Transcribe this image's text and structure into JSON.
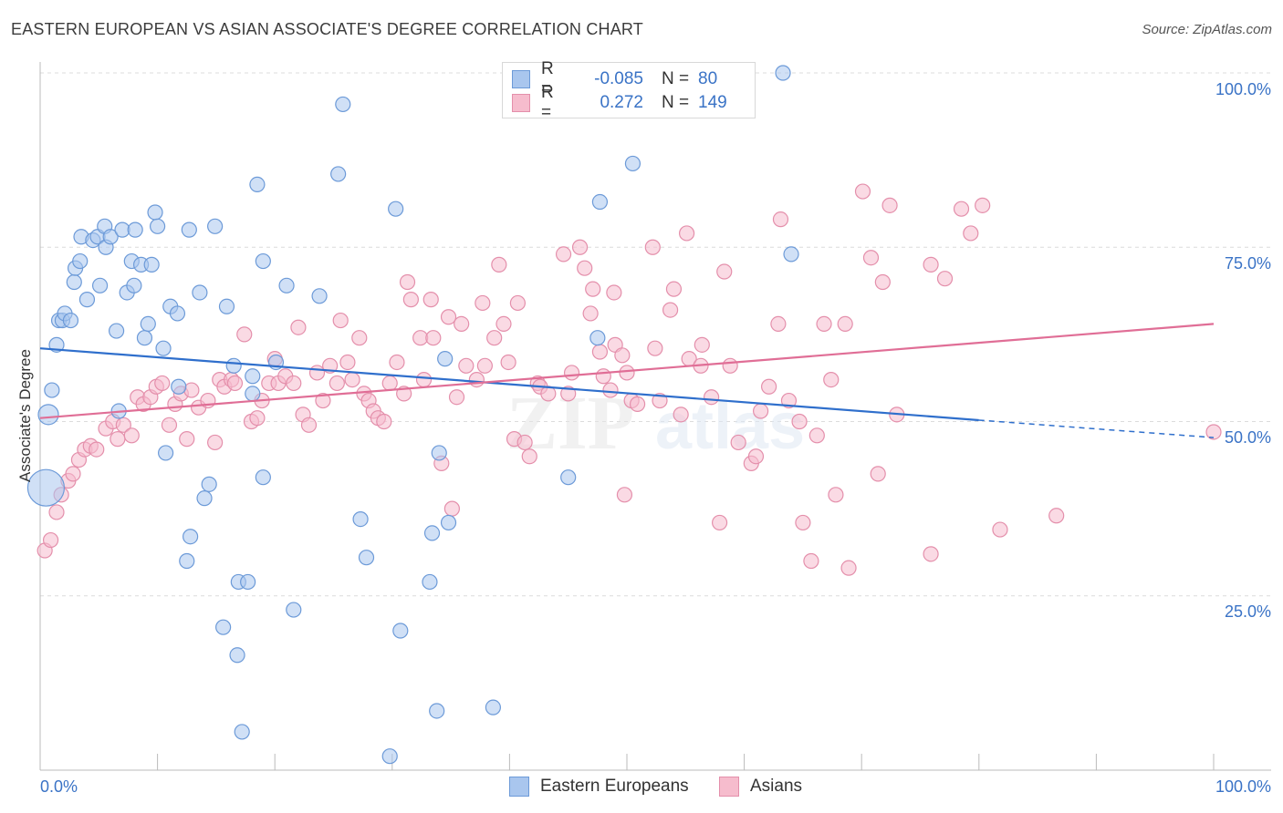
{
  "title": "EASTERN EUROPEAN VS ASIAN ASSOCIATE'S DEGREE CORRELATION CHART",
  "source": "Source: ZipAtlas.com",
  "colors": {
    "blue_fill": "#a9c6ee",
    "blue_stroke": "#6c9ad8",
    "blue_line": "#2f6fcc",
    "pink_fill": "#f6bccd",
    "pink_stroke": "#e48fab",
    "pink_line": "#e06e96",
    "axis_label": "#3a73c6",
    "grid": "#dcdcdc"
  },
  "stats": {
    "rows": [
      {
        "r_label": "R =",
        "r_value": "-0.085",
        "n_label": "N =",
        "n_value": "80"
      },
      {
        "r_label": "R =",
        "r_value": "0.272",
        "n_label": "N =",
        "n_value": "149"
      }
    ]
  },
  "legend": {
    "items": [
      {
        "label": "Eastern Europeans"
      },
      {
        "label": "Asians"
      }
    ]
  },
  "axis": {
    "ylabel": "Associate's Degree",
    "x_min_label": "0.0%",
    "x_max_label": "100.0%",
    "y_ticks": [
      "100.0%",
      "75.0%",
      "50.0%",
      "25.0%"
    ]
  },
  "watermark": {
    "zip": "ZIP",
    "atlas": "atlas"
  },
  "chart_data": {
    "type": "scatter",
    "xlim": [
      0,
      100
    ],
    "ylim": [
      0,
      100
    ],
    "x_tick_labels": [
      "0.0%",
      "100.0%"
    ],
    "y_tick_values": [
      100,
      75,
      50,
      25
    ],
    "grid": true,
    "legend_position": "bottom",
    "series": [
      {
        "name": "Eastern Europeans",
        "r": -0.085,
        "n": 80,
        "trend": {
          "x0": 0,
          "y0": 60.5,
          "x1": 80,
          "y1": 50.2,
          "dashed_to": 100,
          "dashed_y": 47.7
        },
        "points": [
          [
            0.5,
            40.5
          ],
          [
            0.7,
            51
          ],
          [
            1,
            54.5
          ],
          [
            1.4,
            61
          ],
          [
            1.6,
            64.5
          ],
          [
            1.9,
            64.5
          ],
          [
            2.1,
            65.5
          ],
          [
            2.6,
            64.5
          ],
          [
            2.9,
            70
          ],
          [
            3,
            72
          ],
          [
            3.4,
            73
          ],
          [
            3.5,
            76.5
          ],
          [
            4,
            67.5
          ],
          [
            4.5,
            76
          ],
          [
            4.9,
            76.5
          ],
          [
            5.1,
            69.5
          ],
          [
            5.5,
            78
          ],
          [
            5.6,
            75
          ],
          [
            6,
            76.5
          ],
          [
            6.5,
            63
          ],
          [
            6.7,
            51.5
          ],
          [
            7,
            77.5
          ],
          [
            7.4,
            68.5
          ],
          [
            7.8,
            73
          ],
          [
            8,
            69.5
          ],
          [
            8.1,
            77.5
          ],
          [
            8.6,
            72.5
          ],
          [
            8.9,
            62
          ],
          [
            9.2,
            64
          ],
          [
            9.5,
            72.5
          ],
          [
            9.8,
            80
          ],
          [
            10,
            78
          ],
          [
            10.5,
            60.5
          ],
          [
            10.7,
            45.5
          ],
          [
            11.1,
            66.5
          ],
          [
            11.7,
            65.5
          ],
          [
            11.8,
            55
          ],
          [
            12.5,
            30
          ],
          [
            12.7,
            77.5
          ],
          [
            12.8,
            33.5
          ],
          [
            13.6,
            68.5
          ],
          [
            14,
            39
          ],
          [
            14.4,
            41
          ],
          [
            14.9,
            78
          ],
          [
            15.6,
            20.5
          ],
          [
            15.9,
            66.5
          ],
          [
            16.5,
            58
          ],
          [
            16.8,
            16.5
          ],
          [
            16.9,
            27
          ],
          [
            17.2,
            5.5
          ],
          [
            17.7,
            27
          ],
          [
            18.1,
            54
          ],
          [
            18.1,
            56.5
          ],
          [
            18.5,
            84
          ],
          [
            19,
            73
          ],
          [
            19,
            42
          ],
          [
            20.1,
            58.5
          ],
          [
            21,
            69.5
          ],
          [
            21.6,
            23
          ],
          [
            23.8,
            68
          ],
          [
            25.4,
            85.5
          ],
          [
            25.8,
            95.5
          ],
          [
            27.3,
            36
          ],
          [
            27.8,
            30.5
          ],
          [
            29.8,
            2
          ],
          [
            30.3,
            80.5
          ],
          [
            30.7,
            20
          ],
          [
            33.2,
            27
          ],
          [
            33.4,
            34
          ],
          [
            33.8,
            8.5
          ],
          [
            34,
            45.5
          ],
          [
            34.5,
            59
          ],
          [
            34.8,
            35.5
          ],
          [
            38.6,
            9
          ],
          [
            45,
            42
          ],
          [
            47.5,
            62
          ],
          [
            47.7,
            81.5
          ],
          [
            50.5,
            87
          ],
          [
            63.3,
            100
          ],
          [
            64,
            74
          ]
        ],
        "sizes": {
          "0.5,40.5": "xl",
          "0.7,51": "l"
        }
      },
      {
        "name": "Asians",
        "r": 0.272,
        "n": 149,
        "trend": {
          "x0": 0,
          "y0": 50.5,
          "x1": 100,
          "y1": 64
        },
        "points": [
          [
            0.4,
            31.5
          ],
          [
            0.9,
            33
          ],
          [
            1.4,
            37
          ],
          [
            1.8,
            39.5
          ],
          [
            2.4,
            41.5
          ],
          [
            2.8,
            42.5
          ],
          [
            3.3,
            44.5
          ],
          [
            3.8,
            46
          ],
          [
            4.3,
            46.5
          ],
          [
            4.8,
            46
          ],
          [
            5.6,
            49
          ],
          [
            6.2,
            50
          ],
          [
            6.6,
            47.5
          ],
          [
            7.1,
            49.5
          ],
          [
            7.8,
            48
          ],
          [
            8.3,
            53.5
          ],
          [
            8.8,
            52.5
          ],
          [
            9.4,
            53.5
          ],
          [
            9.9,
            55
          ],
          [
            10.4,
            55.5
          ],
          [
            11,
            49.5
          ],
          [
            11.5,
            52.5
          ],
          [
            12,
            54
          ],
          [
            12.5,
            47.5
          ],
          [
            12.9,
            54.5
          ],
          [
            13.5,
            52
          ],
          [
            14.3,
            53
          ],
          [
            14.9,
            47
          ],
          [
            15.3,
            56
          ],
          [
            15.7,
            55
          ],
          [
            16.3,
            56
          ],
          [
            16.6,
            55.5
          ],
          [
            17.4,
            62.5
          ],
          [
            18,
            50
          ],
          [
            18.5,
            50.5
          ],
          [
            18.9,
            53
          ],
          [
            19.5,
            55.5
          ],
          [
            20,
            59
          ],
          [
            20.3,
            55.5
          ],
          [
            20.9,
            56.5
          ],
          [
            21.6,
            55.5
          ],
          [
            22,
            63.5
          ],
          [
            22.4,
            51
          ],
          [
            22.9,
            49.5
          ],
          [
            23.6,
            57
          ],
          [
            24.1,
            53
          ],
          [
            24.7,
            58
          ],
          [
            25.3,
            55.5
          ],
          [
            25.6,
            64.5
          ],
          [
            26.2,
            58.5
          ],
          [
            26.6,
            56
          ],
          [
            27.2,
            62
          ],
          [
            27.6,
            54
          ],
          [
            28,
            53
          ],
          [
            28.4,
            51.5
          ],
          [
            28.8,
            50.5
          ],
          [
            29.3,
            50
          ],
          [
            29.8,
            55.5
          ],
          [
            30.4,
            58.5
          ],
          [
            31,
            54
          ],
          [
            31.3,
            70
          ],
          [
            31.6,
            67.5
          ],
          [
            32.4,
            62
          ],
          [
            32.7,
            56
          ],
          [
            33.3,
            67.5
          ],
          [
            33.5,
            62
          ],
          [
            34.2,
            44
          ],
          [
            34.8,
            65
          ],
          [
            35.1,
            37.5
          ],
          [
            35.5,
            53.5
          ],
          [
            35.9,
            64
          ],
          [
            36.3,
            58
          ],
          [
            37.2,
            56
          ],
          [
            37.7,
            67
          ],
          [
            37.9,
            58
          ],
          [
            38.7,
            62
          ],
          [
            39.1,
            72.5
          ],
          [
            39.5,
            64
          ],
          [
            39.9,
            58.5
          ],
          [
            40.4,
            47.5
          ],
          [
            40.7,
            67
          ],
          [
            41.3,
            47
          ],
          [
            41.7,
            45
          ],
          [
            42.4,
            55.5
          ],
          [
            42.6,
            55
          ],
          [
            43.3,
            54
          ],
          [
            44.6,
            74
          ],
          [
            45,
            54
          ],
          [
            45.3,
            57
          ],
          [
            46,
            75
          ],
          [
            46.4,
            72
          ],
          [
            46.9,
            65.5
          ],
          [
            47.1,
            69
          ],
          [
            47.7,
            60
          ],
          [
            48,
            56.5
          ],
          [
            48.6,
            54.5
          ],
          [
            48.9,
            68.5
          ],
          [
            49,
            61
          ],
          [
            49.6,
            59.5
          ],
          [
            49.8,
            39.5
          ],
          [
            50,
            57
          ],
          [
            50.4,
            53
          ],
          [
            50.9,
            52.5
          ],
          [
            52.2,
            75
          ],
          [
            52.4,
            60.5
          ],
          [
            52.8,
            53
          ],
          [
            53.7,
            66
          ],
          [
            54,
            69
          ],
          [
            54.6,
            51
          ],
          [
            55.1,
            77
          ],
          [
            55.3,
            59
          ],
          [
            56.3,
            58
          ],
          [
            56.4,
            61
          ],
          [
            57.2,
            53.5
          ],
          [
            57.9,
            35.5
          ],
          [
            58.3,
            71.5
          ],
          [
            58.8,
            58
          ],
          [
            59.5,
            47
          ],
          [
            60.6,
            44
          ],
          [
            61,
            45
          ],
          [
            61.4,
            51.5
          ],
          [
            62.1,
            55
          ],
          [
            62.9,
            64
          ],
          [
            63.1,
            79
          ],
          [
            63.8,
            53
          ],
          [
            64.7,
            50
          ],
          [
            65,
            35.5
          ],
          [
            65.7,
            30
          ],
          [
            66.2,
            48
          ],
          [
            66.8,
            64
          ],
          [
            67.4,
            56
          ],
          [
            67.8,
            39.5
          ],
          [
            68.6,
            64
          ],
          [
            68.9,
            29
          ],
          [
            70.1,
            83
          ],
          [
            70.8,
            73.5
          ],
          [
            71.4,
            42.5
          ],
          [
            71.8,
            70
          ],
          [
            72.4,
            81
          ],
          [
            73,
            51
          ],
          [
            75.9,
            72.5
          ],
          [
            75.9,
            31
          ],
          [
            77.1,
            70.5
          ],
          [
            78.5,
            80.5
          ],
          [
            79.3,
            77
          ],
          [
            80.3,
            81
          ],
          [
            81.8,
            34.5
          ],
          [
            86.6,
            36.5
          ],
          [
            100,
            48.5
          ]
        ]
      }
    ]
  }
}
